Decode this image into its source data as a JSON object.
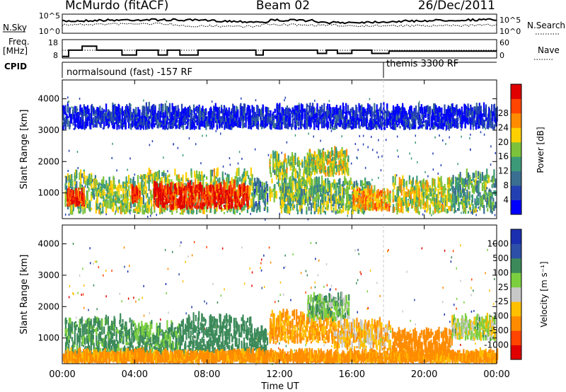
{
  "header": {
    "station": "McMurdo (fitACF)",
    "beam": "Beam 02",
    "date": "26/Dec/2011"
  },
  "strips": {
    "nsky_label": "N.Sky",
    "nsearch_label": "N.Search",
    "freq_label": "Freq.",
    "freq_unit": "[MHz]",
    "nave_label": "Nave",
    "cpid_label": "CPID",
    "nsky_ticks": [
      "10^5",
      "10^0"
    ],
    "nsearch_ticks": [
      "10^5",
      "10^0"
    ],
    "freq_ticks": [
      "18",
      "8"
    ],
    "nave_ticks": [
      "60",
      "0"
    ],
    "cpid_segments": [
      {
        "label": "normalsound (fast) -157 RF",
        "start_hour": 0
      },
      {
        "label": "themis 3300 RF",
        "start_hour": 18.0
      }
    ],
    "freq_trace": [
      [
        0.0,
        8.6
      ],
      [
        0.35,
        12.6
      ],
      [
        0.9,
        12.6
      ],
      [
        1.1,
        15.2
      ],
      [
        1.7,
        15.2
      ],
      [
        1.9,
        12.6
      ],
      [
        3.2,
        12.6
      ],
      [
        3.3,
        9.5
      ],
      [
        4.0,
        9.5
      ],
      [
        4.1,
        12.6
      ],
      [
        5.2,
        12.6
      ],
      [
        5.3,
        9.5
      ],
      [
        5.7,
        9.5
      ],
      [
        5.8,
        12.6
      ],
      [
        6.4,
        12.6
      ],
      [
        6.5,
        9.5
      ],
      [
        7.4,
        9.5
      ],
      [
        7.5,
        12.6
      ],
      [
        10.6,
        12.6
      ],
      [
        10.7,
        9.5
      ],
      [
        11.0,
        9.5
      ],
      [
        11.1,
        12.6
      ],
      [
        14.0,
        12.6
      ],
      [
        14.1,
        10.5
      ],
      [
        14.5,
        10.5
      ],
      [
        14.6,
        12.6
      ],
      [
        15.1,
        12.6
      ],
      [
        15.2,
        10.5
      ],
      [
        15.9,
        10.5
      ],
      [
        16.0,
        12.6
      ],
      [
        17.0,
        12.6
      ],
      [
        17.1,
        10.5
      ],
      [
        18.0,
        10.5
      ],
      [
        18.05,
        12.0
      ],
      [
        24.0,
        12.0
      ]
    ]
  },
  "chart_data": [
    {
      "type": "heatmap",
      "panel": "power",
      "ylabel": "Slant Range [km]",
      "ylim": [
        180,
        4600
      ],
      "yticks": [
        "1000",
        "2000",
        "3000",
        "4000"
      ],
      "colorbar_label": "Power [dB]",
      "colorbar_ticks": [
        "4",
        "8",
        "12",
        "16",
        "20",
        "24",
        "28"
      ],
      "colorbar_colors": [
        "#0000ff",
        "#2340b3",
        "#3a6f91",
        "#3c9a78",
        "#7cc23a",
        "#ffd000",
        "#ff8c00",
        "#ff4500",
        "#e00000"
      ],
      "colorbar_range": [
        0,
        30
      ],
      "echo_regions": [
        {
          "t0": 0.1,
          "t1": 1.8,
          "r0": 300,
          "r1": 1500,
          "level": 0.45
        },
        {
          "t0": 0.2,
          "t1": 1.2,
          "r0": 550,
          "r1": 950,
          "level": 0.85
        },
        {
          "t0": 1.8,
          "t1": 4.2,
          "r0": 300,
          "r1": 1300,
          "level": 0.5
        },
        {
          "t0": 3.8,
          "t1": 4.3,
          "r0": 650,
          "r1": 1000,
          "level": 0.85
        },
        {
          "t0": 4.2,
          "t1": 10.5,
          "r0": 300,
          "r1": 1550,
          "level": 0.5
        },
        {
          "t0": 5.0,
          "t1": 10.3,
          "r0": 450,
          "r1": 1150,
          "level": 0.9
        },
        {
          "t0": 10.5,
          "t1": 11.3,
          "r0": 350,
          "r1": 1300,
          "level": 0.35
        },
        {
          "t0": 11.4,
          "t1": 13.8,
          "r0": 700,
          "r1": 2100,
          "level": 0.5
        },
        {
          "t0": 13.5,
          "t1": 15.8,
          "r0": 1500,
          "r1": 2200,
          "level": 0.55
        },
        {
          "t0": 12.0,
          "t1": 17.0,
          "r0": 300,
          "r1": 1300,
          "level": 0.45
        },
        {
          "t0": 16.0,
          "t1": 18.1,
          "r0": 400,
          "r1": 1000,
          "level": 0.7
        },
        {
          "t0": 18.2,
          "t1": 21.5,
          "r0": 300,
          "r1": 1300,
          "level": 0.55
        },
        {
          "t0": 21.5,
          "t1": 23.9,
          "r0": 300,
          "r1": 1500,
          "level": 0.4
        },
        {
          "t0": 0.0,
          "t1": 24.0,
          "r0": 3000,
          "r1": 3600,
          "level": 0.1
        }
      ]
    },
    {
      "type": "heatmap",
      "panel": "velocity",
      "ylabel": "Slant Range [km]",
      "xlabel": "Time UT",
      "ylim": [
        180,
        4600
      ],
      "yticks": [
        "1000",
        "2000",
        "3000",
        "4000"
      ],
      "xlim": [
        0,
        24
      ],
      "xticks": [
        "00:00",
        "04:00",
        "08:00",
        "12:00",
        "16:00",
        "20:00",
        "00:00"
      ],
      "colorbar_label": "Velocity [m s⁻¹]",
      "colorbar_ticks": [
        "-1000",
        "-500",
        "-100",
        "-25",
        "25",
        "100",
        "500",
        "1000"
      ],
      "colorbar_colors": [
        "#e00000",
        "#ff4500",
        "#ff8c00",
        "#ffc000",
        "#c8c8c8",
        "#7cd040",
        "#3c8a5a",
        "#2d4fa8",
        "#1a2fb0"
      ],
      "echo_regions": [
        {
          "t0": 0.1,
          "t1": 4.0,
          "r0": 300,
          "r1": 1500,
          "vel": 150
        },
        {
          "t0": 4.0,
          "t1": 6.5,
          "r0": 400,
          "r1": 1300,
          "vel": 120
        },
        {
          "t0": 6.5,
          "t1": 10.5,
          "r0": 300,
          "r1": 1550,
          "vel": 300
        },
        {
          "t0": 10.5,
          "t1": 11.3,
          "r0": 350,
          "r1": 1200,
          "vel": 400
        },
        {
          "t0": 11.4,
          "t1": 15.0,
          "r0": 800,
          "r1": 1700,
          "vel": -120
        },
        {
          "t0": 13.5,
          "t1": 15.8,
          "r0": 1500,
          "r1": 2200,
          "vel": 80
        },
        {
          "t0": 15.0,
          "t1": 18.1,
          "r0": 600,
          "r1": 1400,
          "vel": -60
        },
        {
          "t0": 18.2,
          "t1": 21.5,
          "r0": 300,
          "r1": 1100,
          "vel": -200
        },
        {
          "t0": 21.5,
          "t1": 23.9,
          "r0": 900,
          "r1": 1500,
          "vel": 20
        },
        {
          "t0": 0.0,
          "t1": 24.0,
          "r0": 180,
          "r1": 400,
          "vel": -150
        }
      ]
    }
  ]
}
